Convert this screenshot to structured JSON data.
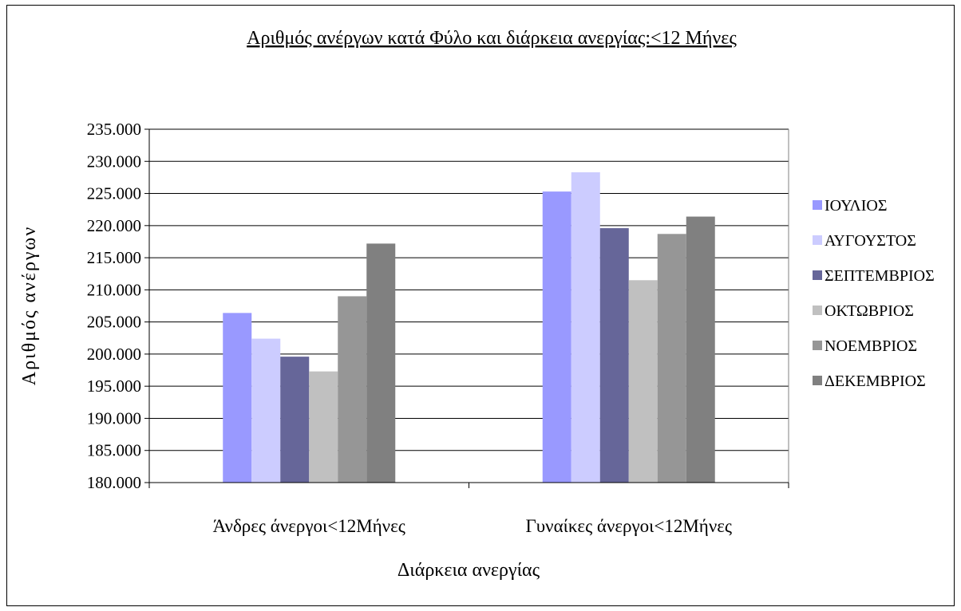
{
  "chart_data": {
    "type": "bar",
    "title": "Αριθμός ανέργων κατά Φύλο και διάρκεια ανεργίας:<12 Μήνες",
    "xlabel": "Διάρκεια ανεργίας",
    "ylabel": "Αριθμός ανέργων",
    "categories": [
      "Άνδρες άνεργοι<12Μήνες",
      "Γυναίκες άνεργοι<12Μήνες"
    ],
    "ylim": [
      180000,
      235000
    ],
    "ytick_step": 5000,
    "yticks": [
      "180.000",
      "185.000",
      "190.000",
      "195.000",
      "200.000",
      "205.000",
      "210.000",
      "215.000",
      "220.000",
      "225.000",
      "230.000",
      "235.000"
    ],
    "grid": true,
    "legend_position": "right",
    "series": [
      {
        "name": "ΙΟΥΛΙΟΣ",
        "color": "#9999ff",
        "values": [
          206400,
          225300
        ]
      },
      {
        "name": "ΑΥΓΟΥΣΤΟΣ",
        "color": "#ccccff",
        "values": [
          202400,
          228300
        ]
      },
      {
        "name": "ΣΕΠΤΕΜΒΡΙΟΣ",
        "color": "#666699",
        "values": [
          199600,
          219600
        ]
      },
      {
        "name": "ΟΚΤΩΒΡΙΟΣ",
        "color": "#c0c0c0",
        "values": [
          197300,
          211500
        ]
      },
      {
        "name": "ΝΟΕΜΒΡΙΟΣ",
        "color": "#969696",
        "values": [
          209000,
          218700
        ]
      },
      {
        "name": "ΔΕΚΕΜΒΡΙΟΣ",
        "color": "#808080",
        "values": [
          217200,
          221400
        ]
      }
    ]
  }
}
